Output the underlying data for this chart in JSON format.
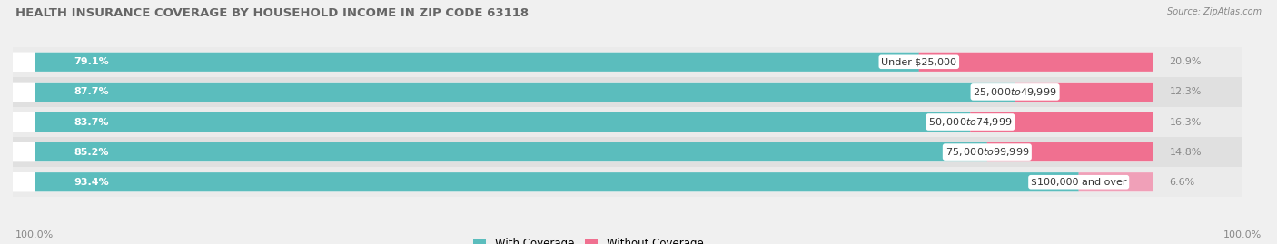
{
  "title": "HEALTH INSURANCE COVERAGE BY HOUSEHOLD INCOME IN ZIP CODE 63118",
  "source": "Source: ZipAtlas.com",
  "categories": [
    "Under $25,000",
    "$25,000 to $49,999",
    "$50,000 to $74,999",
    "$75,000 to $99,999",
    "$100,000 and over"
  ],
  "with_coverage": [
    79.1,
    87.7,
    83.7,
    85.2,
    93.4
  ],
  "without_coverage": [
    20.9,
    12.3,
    16.3,
    14.8,
    6.6
  ],
  "color_coverage": "#5BBDBD",
  "color_no_coverage": "#F07090",
  "color_no_coverage_last": "#F0A0B8",
  "bg_color": "#f0f0f0",
  "bar_bg": "#ffffff",
  "row_bg": "#e8e8e8",
  "title_fontsize": 9.5,
  "label_fontsize": 8,
  "pct_fontsize": 8,
  "legend_fontsize": 8.5,
  "bar_height": 0.62,
  "left_axis_label": "100.0%",
  "right_axis_label": "100.0%"
}
